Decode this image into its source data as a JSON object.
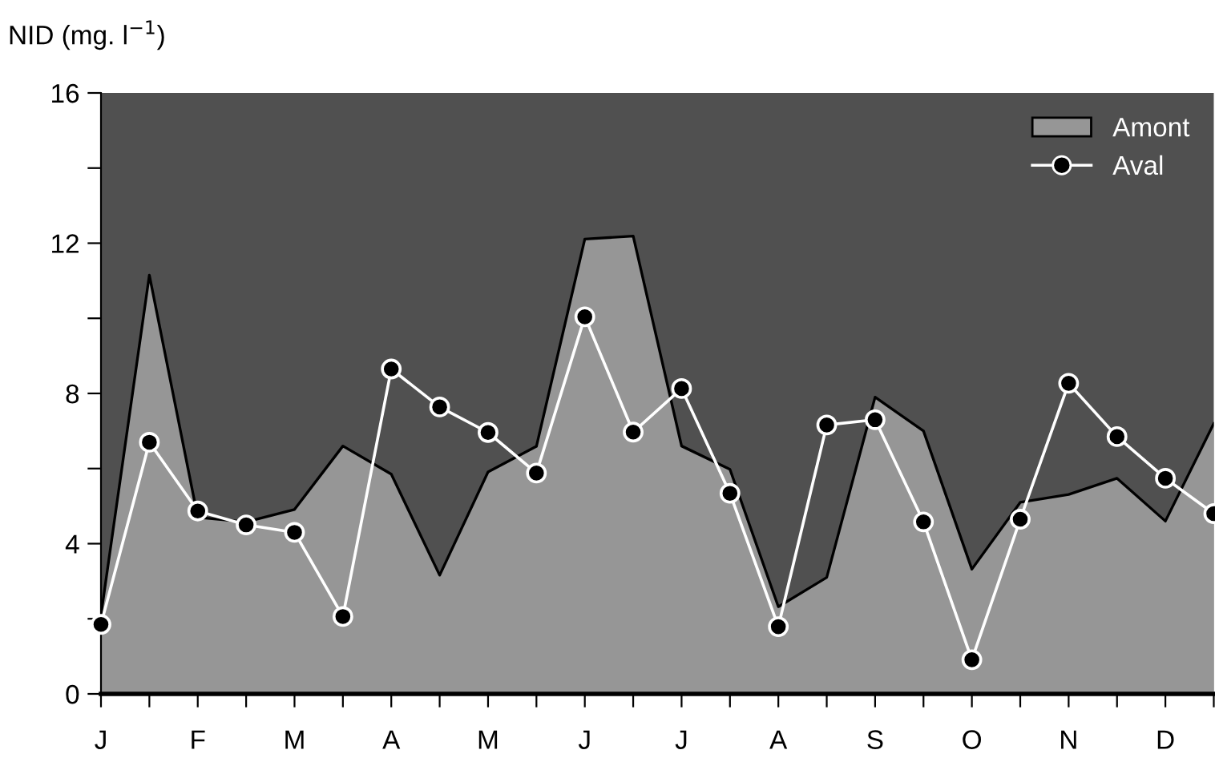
{
  "chart_data": {
    "type": "area",
    "ylabel": "NID (mg. l$^{−1}$)",
    "categories": [
      "J",
      null,
      "F",
      null,
      "M",
      null,
      "A",
      null,
      "M",
      null,
      "J",
      null,
      "J",
      null,
      "A",
      null,
      "S",
      null,
      "O",
      null,
      "N",
      null,
      "D",
      null
    ],
    "series": [
      {
        "name": "Amont",
        "color": "#969696",
        "values": [
          2.1,
          11.15,
          4.7,
          4.58,
          4.91,
          6.6,
          5.85,
          3.16,
          5.91,
          6.59,
          12.11,
          12.19,
          6.6,
          5.98,
          2.32,
          3.1,
          7.9,
          7.0,
          3.32,
          5.1,
          5.31,
          5.74,
          4.6,
          7.2
        ]
      },
      {
        "name": "Aval",
        "type": "line",
        "color": "#ffffff",
        "marker": "circle",
        "values": [
          1.85,
          6.7,
          4.87,
          4.5,
          4.3,
          2.06,
          8.65,
          7.64,
          6.96,
          5.88,
          10.04,
          6.97,
          8.13,
          5.34,
          1.79,
          7.16,
          7.3,
          4.58,
          0.91,
          4.65,
          8.27,
          6.85,
          5.74,
          4.8
        ]
      }
    ],
    "ylim": [
      0,
      16
    ],
    "yticks": [
      0,
      {
        "value": 2,
        "label": null
      },
      4,
      {
        "value": 6,
        "label": null
      },
      8,
      {
        "value": 10,
        "label": null
      },
      12,
      {
        "value": 14,
        "label": null
      },
      16
    ],
    "grid": false,
    "legend": "top right"
  }
}
